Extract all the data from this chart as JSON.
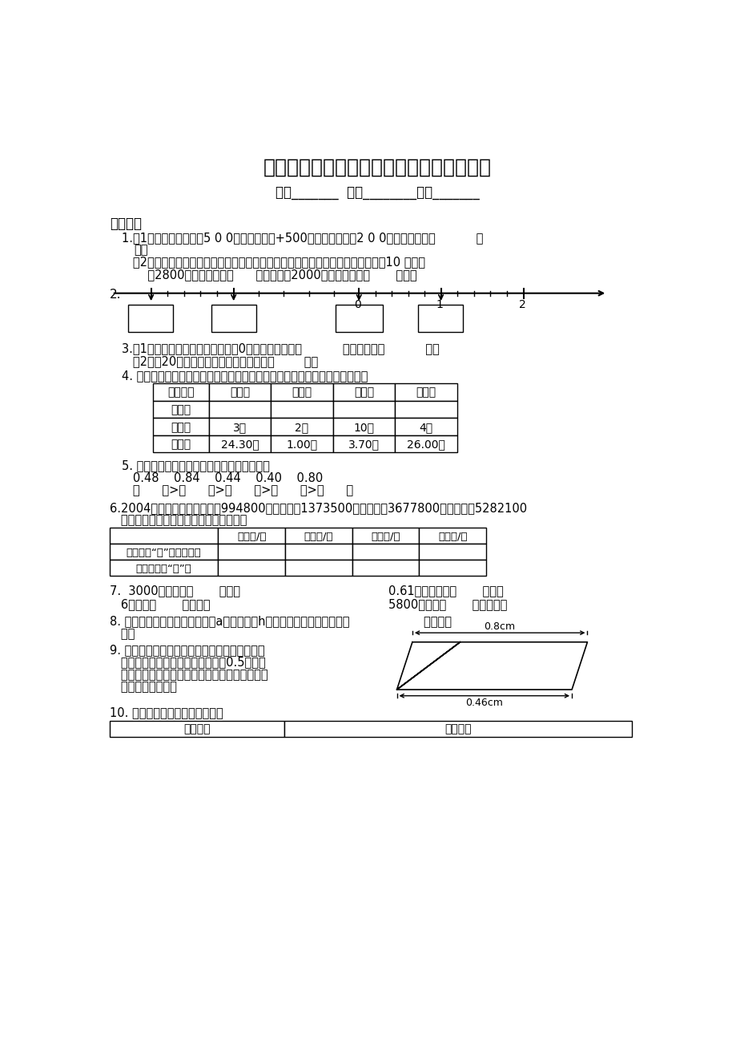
{
  "title": "（苏教版）五年级数学下册期末练习（二）",
  "subtitle": "班级_______  姓名________分数_______",
  "bg_color": "#ffffff",
  "text_color": "#000000",
  "section1_title": "一、填空",
  "q1_1": "1.（1）如果小明向东走5 0 0米，可以记作+500米；那么向西走2 0 0米，可以记作（           ）",
  "q1_1b": "米。",
  "q1_2a": "   （2）如果用正数表示一个月的收入，用负数表示一个月的支出，那么王小强今年10 月份收",
  "q1_2b": "       入2800元，可以记作（      ）元，支出2000元，可以记作（       ）元。",
  "q3_1": "3.（1）一个三位小数的整数部分是0，这个数最大是（           ），最小是（           ）。",
  "q3_2": "   （2）產20个百分之一组成的两位小数是（        ）。",
  "q4": "4. 王老师买了下面的商品。请算出每种商品的单价，并用两位小数表示结果。",
  "table4_headers": [
    "商品名称",
    "鈢　笔",
    "直　尺",
    "练习本",
    "文具盒"
  ],
  "table4_row1": [
    "单　价",
    "",
    "",
    "",
    ""
  ],
  "table4_row2": [
    "数　量",
    "3枝",
    "2把",
    "10本",
    "4个"
  ],
  "table4_row3": [
    "金　额",
    "24.30元",
    "1.00元",
    "3.70元",
    "26.00元"
  ],
  "q5": "5. 把下面的小数按从大到小的顺序排列起来。",
  "q5_nums": "   0.48    0.84    0.44    0.40    0.80",
  "q5_blanks": "   （      ）>（      ）>（      ）>（      ）>（      ）",
  "q6": "6.2004年某省共有在校大学生994800人，高中生1373500人，初中生3677800人，小学生5282100",
  "q6b": "   人。按要求把上面各数填在下面的表中。",
  "table6_headers": [
    "",
    "大学生/人",
    "高中生/人",
    "初中生/人",
    "小学生/人"
  ],
  "table6_row1": [
    "改写成用“万”作单位的数",
    "",
    "",
    "",
    ""
  ],
  "table6_row2": [
    "四舍五入到“万”位",
    "",
    "",
    "",
    ""
  ],
  "q7a": "7.  3000平方米＝（       ）公顿",
  "q7b": "0.61平方千米＝（       ）公顿",
  "q7c": "   6公顿＝（       ）平方米",
  "q7d": "5800公顿＝（       ）平方千米",
  "q8": "8. 一个梯形的上底与下底的和是a厘米，高是h厘米。这个梯形的面积是（                    ）平方厘",
  "q8b": "   米。",
  "q9": "9. 如右图，把一个平行四边形剪成一个三角形和",
  "q9b": "   一个梯形。如果平行四边形的高是0.5厘米，",
  "q9c": "   那么三角形的面积是（）平方厘米，梯形的面积",
  "q9d": "   是（）平方厘米。",
  "q10": "10. 某市出租车的收费标准如下：",
  "table10_headers": [
    "里　　程",
    "收费标准"
  ]
}
